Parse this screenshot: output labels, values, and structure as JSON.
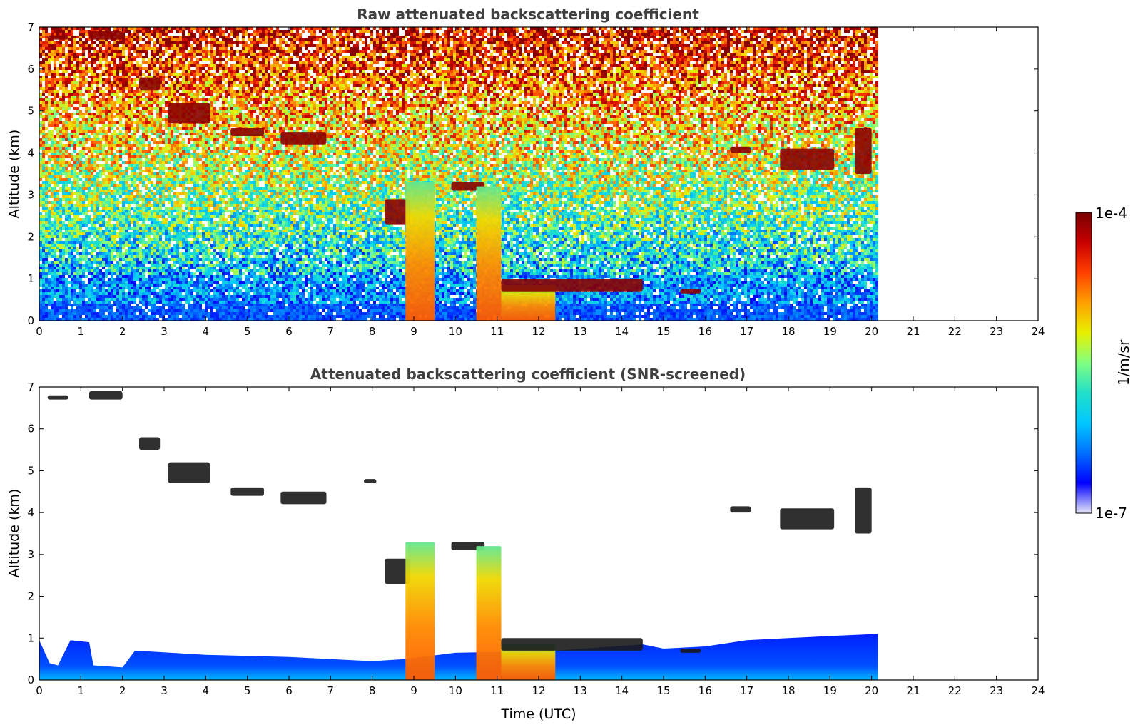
{
  "chart_data": [
    {
      "type": "heatmap",
      "title": "Raw attenuated backscattering coefficient",
      "xlabel": "",
      "ylabel": "Altitude (km)",
      "xlim": [
        0,
        24
      ],
      "ylim": [
        0,
        7
      ],
      "xticks": [
        "0",
        "1",
        "2",
        "3",
        "4",
        "5",
        "6",
        "7",
        "8",
        "9",
        "10",
        "11",
        "12",
        "13",
        "14",
        "15",
        "16",
        "17",
        "18",
        "19",
        "20",
        "21",
        "22",
        "23",
        "24"
      ],
      "yticks": [
        "0",
        "1",
        "2",
        "3",
        "4",
        "5",
        "6",
        "7"
      ],
      "data_end_time": 20.15,
      "background": "noise increasing with altitude; boundary layer below ~1 km",
      "features": [
        {
          "name": "cirrus",
          "t0": 0.2,
          "t1": 0.7,
          "z0": 6.7,
          "z1": 6.8
        },
        {
          "name": "cirrus",
          "t0": 1.2,
          "t1": 2.0,
          "z0": 6.7,
          "z1": 6.9
        },
        {
          "name": "cirrus",
          "t0": 2.4,
          "t1": 2.9,
          "z0": 5.5,
          "z1": 5.8
        },
        {
          "name": "cirrus",
          "t0": 3.1,
          "t1": 4.1,
          "z0": 4.7,
          "z1": 5.2
        },
        {
          "name": "cirrus",
          "t0": 4.6,
          "t1": 5.4,
          "z0": 4.4,
          "z1": 4.6
        },
        {
          "name": "cirrus",
          "t0": 5.8,
          "t1": 6.9,
          "z0": 4.2,
          "z1": 4.5
        },
        {
          "name": "cirrus",
          "t0": 7.8,
          "t1": 8.1,
          "z0": 4.7,
          "z1": 4.8
        },
        {
          "name": "mid-level cloud",
          "t0": 8.3,
          "t1": 8.9,
          "z0": 2.3,
          "z1": 2.9
        },
        {
          "name": "mid-level cloud",
          "t0": 9.9,
          "t1": 10.7,
          "z0": 3.1,
          "z1": 3.3
        },
        {
          "name": "precipitation",
          "t0": 8.8,
          "t1": 9.5,
          "z0": 0.0,
          "z1": 3.3
        },
        {
          "name": "precipitation",
          "t0": 10.5,
          "t1": 11.1,
          "z0": 0.0,
          "z1": 3.2
        },
        {
          "name": "precipitation",
          "t0": 11.1,
          "t1": 12.4,
          "z0": 0.0,
          "z1": 0.85
        },
        {
          "name": "low cloud",
          "t0": 11.1,
          "t1": 14.5,
          "z0": 0.7,
          "z1": 1.0
        },
        {
          "name": "low cloud",
          "t0": 15.4,
          "t1": 15.9,
          "z0": 0.65,
          "z1": 0.75
        },
        {
          "name": "cirrus",
          "t0": 16.6,
          "t1": 17.1,
          "z0": 4.0,
          "z1": 4.15
        },
        {
          "name": "cirrus",
          "t0": 17.8,
          "t1": 19.1,
          "z0": 3.6,
          "z1": 4.1
        },
        {
          "name": "cirrus",
          "t0": 19.6,
          "t1": 20.0,
          "z0": 3.5,
          "z1": 4.6
        }
      ]
    },
    {
      "type": "heatmap",
      "title": "Attenuated backscattering coefficient (SNR-screened)",
      "xlabel": "Time (UTC)",
      "ylabel": "Altitude (km)",
      "xlim": [
        0,
        24
      ],
      "ylim": [
        0,
        7
      ],
      "xticks": [
        "0",
        "1",
        "2",
        "3",
        "4",
        "5",
        "6",
        "7",
        "8",
        "9",
        "10",
        "11",
        "12",
        "13",
        "14",
        "15",
        "16",
        "17",
        "18",
        "19",
        "20",
        "21",
        "22",
        "23",
        "24"
      ],
      "yticks": [
        "0",
        "1",
        "2",
        "3",
        "4",
        "5",
        "6",
        "7"
      ],
      "data_end_time": 20.15,
      "background": "noise removed; only boundary layer and cloud/precipitation signals remain",
      "boundary_layer_top": [
        [
          0,
          0.95
        ],
        [
          0.25,
          0.4
        ],
        [
          0.45,
          0.35
        ],
        [
          0.75,
          0.95
        ],
        [
          1.2,
          0.9
        ],
        [
          1.3,
          0.35
        ],
        [
          2.0,
          0.3
        ],
        [
          2.3,
          0.7
        ],
        [
          4.0,
          0.6
        ],
        [
          6.0,
          0.55
        ],
        [
          8.0,
          0.45
        ],
        [
          8.8,
          0.5
        ],
        [
          10.0,
          0.65
        ],
        [
          12.4,
          0.7
        ],
        [
          14.5,
          0.85
        ],
        [
          15.0,
          0.75
        ],
        [
          16.0,
          0.8
        ],
        [
          17.0,
          0.95
        ],
        [
          18.0,
          1.0
        ],
        [
          19.0,
          1.05
        ],
        [
          20.15,
          1.1
        ]
      ]
    }
  ],
  "colorbar": {
    "label": "1/m/sr",
    "min_label": "1e-7",
    "max_label": "1e-4",
    "stops": [
      "#e6e6f8",
      "#0000ff",
      "#0070ff",
      "#00c8ff",
      "#20e0c8",
      "#80ff80",
      "#e8f000",
      "#ffa000",
      "#ff4000",
      "#c80000",
      "#780000"
    ]
  }
}
